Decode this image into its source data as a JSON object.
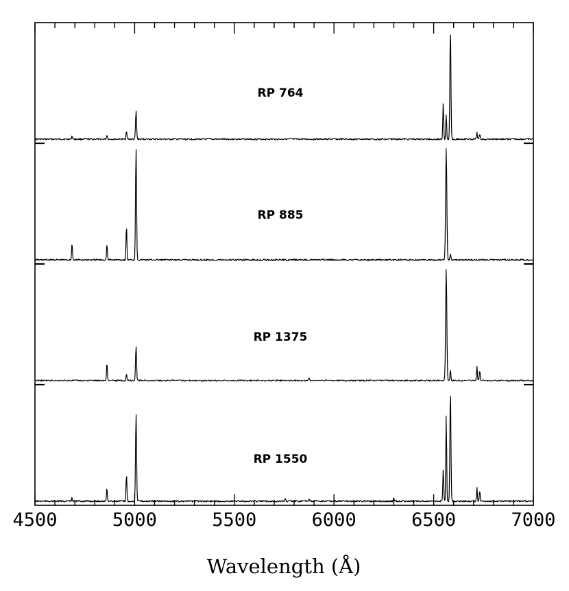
{
  "chart_data": {
    "type": "line",
    "xlabel": "Wavelength (Å)",
    "ylabel": "",
    "xlim": [
      4500,
      7000
    ],
    "x_ticks": [
      4500,
      5000,
      5500,
      6000,
      6500,
      7000
    ],
    "ylim": [
      0,
      1
    ],
    "grid": false,
    "legend": "none",
    "series": [
      {
        "name": "RP 764",
        "lines": [
          {
            "x": 4686,
            "y": 0.03,
            "w": 5
          },
          {
            "x": 4861,
            "y": 0.04,
            "w": 5
          },
          {
            "x": 4959,
            "y": 0.08,
            "w": 5
          },
          {
            "x": 5007,
            "y": 0.25,
            "w": 6
          },
          {
            "x": 5755,
            "y": 0.01,
            "w": 5
          },
          {
            "x": 6548,
            "y": 0.32,
            "w": 5
          },
          {
            "x": 6563,
            "y": 0.23,
            "w": 5
          },
          {
            "x": 6584,
            "y": 1.0,
            "w": 6
          },
          {
            "x": 6717,
            "y": 0.06,
            "w": 5
          },
          {
            "x": 6731,
            "y": 0.05,
            "w": 5
          }
        ]
      },
      {
        "name": "RP 885",
        "lines": [
          {
            "x": 4686,
            "y": 0.15,
            "w": 5
          },
          {
            "x": 4861,
            "y": 0.14,
            "w": 5
          },
          {
            "x": 4959,
            "y": 0.31,
            "w": 5
          },
          {
            "x": 5007,
            "y": 1.0,
            "w": 6
          },
          {
            "x": 6563,
            "y": 1.0,
            "w": 7
          },
          {
            "x": 6584,
            "y": 0.05,
            "w": 5
          }
        ]
      },
      {
        "name": "RP 1375",
        "lines": [
          {
            "x": 4861,
            "y": 0.16,
            "w": 5
          },
          {
            "x": 4959,
            "y": 0.06,
            "w": 5
          },
          {
            "x": 5007,
            "y": 0.31,
            "w": 6
          },
          {
            "x": 5876,
            "y": 0.02,
            "w": 5
          },
          {
            "x": 6563,
            "y": 1.0,
            "w": 7
          },
          {
            "x": 6584,
            "y": 0.1,
            "w": 5
          },
          {
            "x": 6717,
            "y": 0.13,
            "w": 5
          },
          {
            "x": 6731,
            "y": 0.09,
            "w": 5
          }
        ]
      },
      {
        "name": "RP 1550",
        "lines": [
          {
            "x": 4686,
            "y": 0.03,
            "w": 5
          },
          {
            "x": 4861,
            "y": 0.12,
            "w": 5
          },
          {
            "x": 4959,
            "y": 0.24,
            "w": 5
          },
          {
            "x": 5007,
            "y": 0.78,
            "w": 6
          },
          {
            "x": 5755,
            "y": 0.02,
            "w": 5
          },
          {
            "x": 5876,
            "y": 0.02,
            "w": 5
          },
          {
            "x": 6300,
            "y": 0.03,
            "w": 5
          },
          {
            "x": 6548,
            "y": 0.29,
            "w": 5
          },
          {
            "x": 6563,
            "y": 0.78,
            "w": 5
          },
          {
            "x": 6584,
            "y": 1.0,
            "w": 6
          },
          {
            "x": 6717,
            "y": 0.12,
            "w": 5
          },
          {
            "x": 6731,
            "y": 0.09,
            "w": 5
          }
        ]
      }
    ]
  }
}
